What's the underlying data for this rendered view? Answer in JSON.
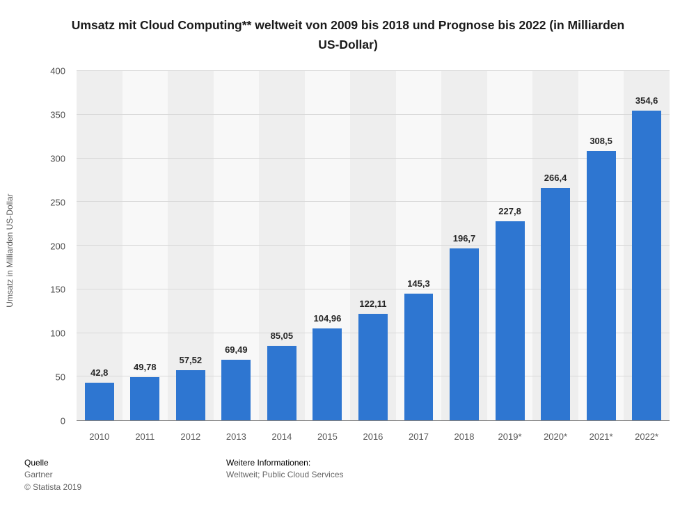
{
  "title": "Umsatz mit Cloud Computing** weltweit von 2009 bis 2018 und Prognose bis 2022 (in Milliarden US-Dollar)",
  "colors": {
    "bar": "#2e76d1",
    "stripe_dark": "#eeeeee",
    "stripe_light": "#f8f8f8",
    "gridline": "#d9d9d9"
  },
  "chart_data": {
    "type": "bar",
    "categories": [
      "2010",
      "2011",
      "2012",
      "2013",
      "2014",
      "2015",
      "2016",
      "2017",
      "2018",
      "2019*",
      "2020*",
      "2021*",
      "2022*"
    ],
    "values": [
      42.8,
      49.78,
      57.52,
      69.49,
      85.05,
      104.96,
      122.11,
      145.3,
      196.7,
      227.8,
      266.4,
      308.5,
      354.6
    ],
    "value_labels": [
      "42,8",
      "49,78",
      "57,52",
      "69,49",
      "85,05",
      "104,96",
      "122,11",
      "145,3",
      "196,7",
      "227,8",
      "266,4",
      "308,5",
      "354,6"
    ],
    "title": "Umsatz mit Cloud Computing** weltweit von 2009 bis 2018 und Prognose bis 2022 (in Milliarden US-Dollar)",
    "xlabel": "",
    "ylabel": "Umsatz in Milliarden US-Dollar",
    "ylim": [
      0,
      400
    ],
    "yticks": [
      0,
      50,
      100,
      150,
      200,
      250,
      300,
      350,
      400
    ],
    "grid": "horizontal",
    "legend": "none"
  },
  "footer": {
    "source_label": "Quelle",
    "source": "Gartner",
    "copyright": "© Statista 2019",
    "info_label": "Weitere Informationen:",
    "info": "Weltweit; Public Cloud Services"
  }
}
